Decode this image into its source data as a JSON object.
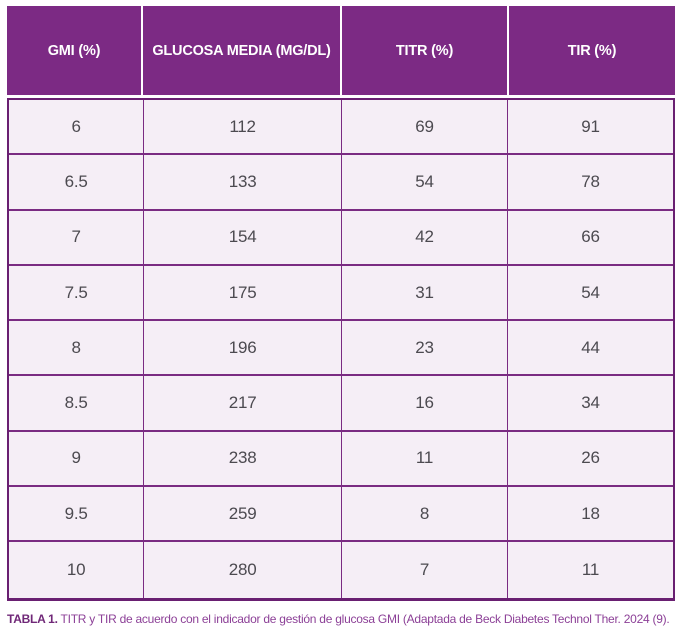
{
  "table": {
    "columns": [
      {
        "label": "GMI (%)"
      },
      {
        "label": "GLUCOSA MEDIA (MG/DL)"
      },
      {
        "label": "TITR (%)"
      },
      {
        "label": "TIR (%)"
      }
    ],
    "rows": [
      [
        "6",
        "112",
        "69",
        "91"
      ],
      [
        "6.5",
        "133",
        "54",
        "78"
      ],
      [
        "7",
        "154",
        "42",
        "66"
      ],
      [
        "7.5",
        "175",
        "31",
        "54"
      ],
      [
        "8",
        "196",
        "23",
        "44"
      ],
      [
        "8.5",
        "217",
        "16",
        "34"
      ],
      [
        "9",
        "238",
        "11",
        "26"
      ],
      [
        "9.5",
        "259",
        "8",
        "18"
      ],
      [
        "10",
        "280",
        "7",
        "11"
      ]
    ]
  },
  "caption": {
    "label": "TABLA 1.",
    "text": "TITR y TIR de acuerdo con el indicador de gestión de glucosa GMI (Adaptada de Beck Diabetes Technol Ther. 2024 (9)."
  },
  "colors": {
    "header_bg": "#7c2a84",
    "header_text": "#ffffff",
    "cell_bg": "#f5eef6",
    "cell_text": "#4c4a50",
    "border": "#7a2b82",
    "outer_border": "#691f71",
    "caption_label": "#702878",
    "caption_text": "#8c4097"
  },
  "chart_data": {
    "type": "table",
    "title": "TABLA 1. TITR y TIR de acuerdo con el indicador de gestión de glucosa GMI",
    "columns": [
      "GMI (%)",
      "GLUCOSA MEDIA (MG/DL)",
      "TITR (%)",
      "TIR (%)"
    ],
    "rows": [
      [
        6,
        112,
        69,
        91
      ],
      [
        6.5,
        133,
        54,
        78
      ],
      [
        7,
        154,
        42,
        66
      ],
      [
        7.5,
        175,
        31,
        54
      ],
      [
        8,
        196,
        23,
        44
      ],
      [
        8.5,
        217,
        16,
        34
      ],
      [
        9,
        238,
        11,
        26
      ],
      [
        9.5,
        259,
        8,
        18
      ],
      [
        10,
        280,
        7,
        11
      ]
    ]
  }
}
